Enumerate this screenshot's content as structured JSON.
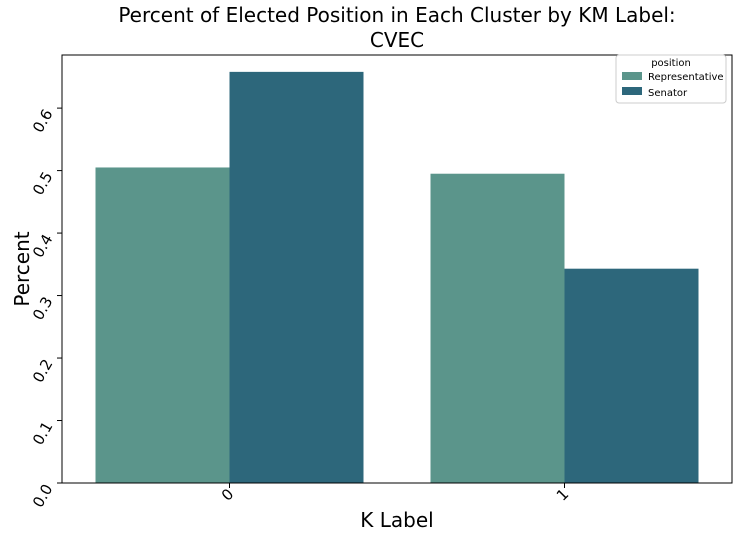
{
  "chart_data": {
    "type": "bar",
    "title": "Percent of Elected Position in Each Cluster by KM Label:",
    "subtitle": "CVEC",
    "xlabel": "K Label",
    "ylabel": "Percent",
    "categories": [
      "0",
      "1"
    ],
    "series": [
      {
        "name": "Representative",
        "values": [
          0.505,
          0.495
        ],
        "color": "#5b958b"
      },
      {
        "name": "Senator",
        "values": [
          0.658,
          0.343
        ],
        "color": "#2d677b"
      }
    ],
    "ylim": [
      0,
      0.685
    ],
    "yticks": [
      "0.0",
      "0.1",
      "0.2",
      "0.3",
      "0.4",
      "0.5",
      "0.6"
    ],
    "grid": false,
    "legend": {
      "title": "position",
      "placement": "top-right"
    }
  }
}
